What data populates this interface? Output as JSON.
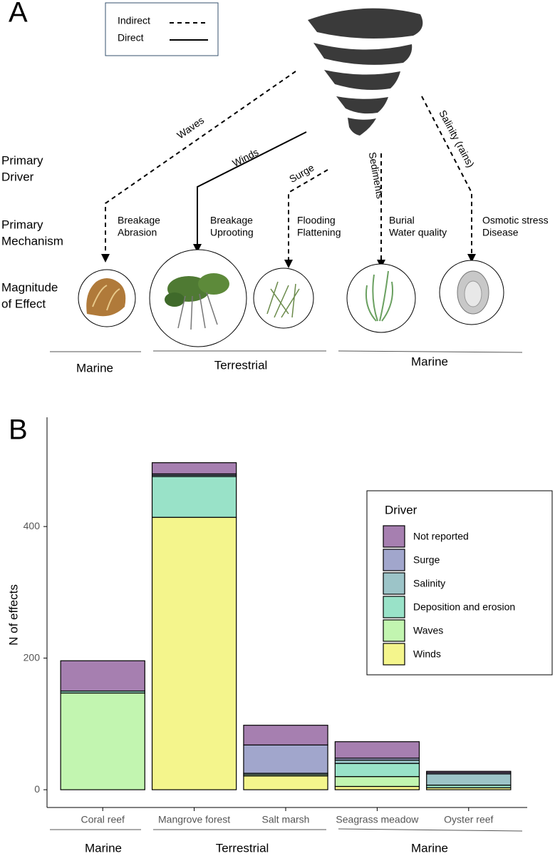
{
  "panel_a": {
    "label": "A",
    "legend": {
      "indirect": "Indirect",
      "direct": "Direct"
    },
    "row_labels": [
      [
        "Primary",
        "Driver"
      ],
      [
        "Primary",
        "Mechanism"
      ],
      [
        "Magnitude",
        "of Effect"
      ]
    ],
    "drivers": [
      "Waves",
      "Winds",
      "Surge",
      "Sediments",
      "Salinity (rains)"
    ],
    "mechanisms": [
      [
        "Breakage",
        "Abrasion"
      ],
      [
        "Breakage",
        "Uprooting"
      ],
      [
        "Flooding",
        "Flattening"
      ],
      [
        "Burial",
        "Water quality"
      ],
      [
        "Osmotic stress",
        "Disease"
      ]
    ],
    "groups": [
      "Marine",
      "Terrestrial",
      "Marine"
    ]
  },
  "chart_data": {
    "type": "bar",
    "stacked": true,
    "label": "B",
    "ylabel": "N of effects",
    "legend_title": "Driver",
    "categories": [
      "Coral reef",
      "Mangrove forest",
      "Salt marsh",
      "Seagrass meadow",
      "Oyster reef"
    ],
    "series": [
      {
        "name": "Winds",
        "color": "#f4f58c",
        "values": [
          0,
          414,
          21,
          5,
          3
        ]
      },
      {
        "name": "Waves",
        "color": "#c2f5b0",
        "values": [
          147,
          0,
          2,
          15,
          0
        ]
      },
      {
        "name": "Deposition and erosion",
        "color": "#99e2c8",
        "values": [
          3,
          62,
          0,
          20,
          4
        ]
      },
      {
        "name": "Salinity",
        "color": "#9cc4c8",
        "values": [
          0,
          2,
          2,
          5,
          17
        ]
      },
      {
        "name": "Surge",
        "color": "#a1a6cc",
        "values": [
          0,
          2,
          43,
          3,
          2
        ]
      },
      {
        "name": "Not reported",
        "color": "#a67fb0",
        "values": [
          46,
          17,
          30,
          25,
          2
        ]
      }
    ],
    "ylim": [
      -27,
      566
    ],
    "yticks": [
      0,
      200,
      400
    ],
    "groups": [
      "Marine",
      "Terrestrial",
      "Marine"
    ]
  }
}
